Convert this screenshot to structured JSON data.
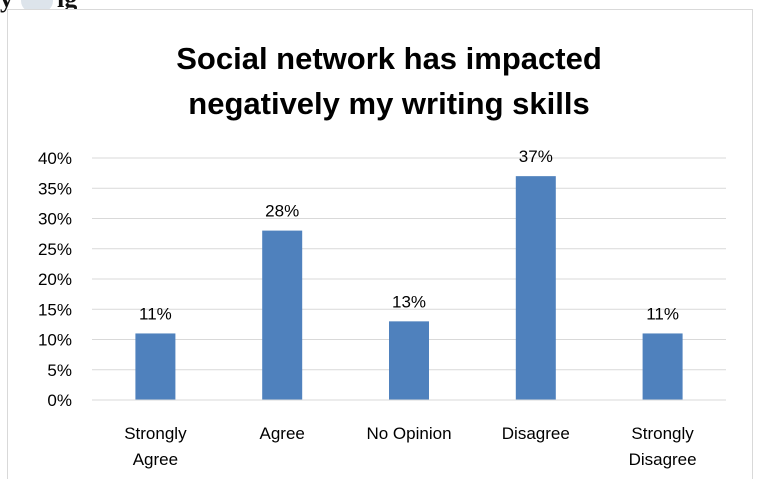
{
  "page_fragment": "y      ig",
  "chart_data": {
    "type": "bar",
    "title_lines": [
      "Social network has impacted",
      "negatively my writing skills"
    ],
    "categories": [
      [
        "Strongly",
        "Agree"
      ],
      [
        "Agree"
      ],
      [
        "No Opinion"
      ],
      [
        "Disagree"
      ],
      [
        "Strongly",
        "Disagree"
      ]
    ],
    "values": [
      11,
      28,
      13,
      37,
      11
    ],
    "data_labels": [
      "11%",
      "28%",
      "13%",
      "37%",
      "11%"
    ],
    "yticks": [
      "0%",
      "5%",
      "10%",
      "15%",
      "20%",
      "25%",
      "30%",
      "35%",
      "40%"
    ],
    "ylim": [
      0,
      40
    ],
    "ytick_step": 5,
    "grid": true,
    "xlabel": "",
    "ylabel": "",
    "bar_color": "#4f81bd",
    "grid_color": "#d9d9d9"
  }
}
